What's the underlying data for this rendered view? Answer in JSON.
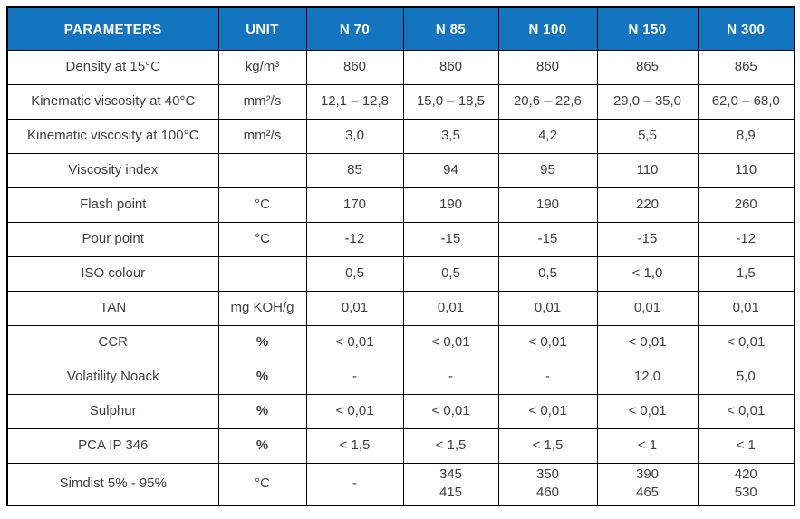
{
  "table": {
    "accent_color": "#1374c0",
    "text_color": "#3f3f3f",
    "columns": [
      "PARAMETERS",
      "UNIT",
      "N 70",
      "N 85",
      "N 100",
      "N 150",
      "N 300"
    ],
    "rows": [
      {
        "parameter": "Density at 15°C",
        "unit": "kg/m³",
        "unit_bold": false,
        "values": [
          "860",
          "860",
          "860",
          "865",
          "865"
        ]
      },
      {
        "parameter": "Kinematic viscosity at 40°C",
        "unit": "mm²/s",
        "unit_bold": false,
        "values": [
          "12,1 – 12,8",
          "15,0 – 18,5",
          "20,6 – 22,6",
          "29,0 – 35,0",
          "62,0 – 68,0"
        ]
      },
      {
        "parameter": "Kinematic viscosity at 100°C",
        "unit": "mm²/s",
        "unit_bold": false,
        "values": [
          "3,0",
          "3,5",
          "4,2",
          "5,5",
          "8,9"
        ]
      },
      {
        "parameter": "Viscosity index",
        "unit": "",
        "unit_bold": false,
        "values": [
          "85",
          "94",
          "95",
          "110",
          "110"
        ]
      },
      {
        "parameter": "Flash point",
        "unit": "°C",
        "unit_bold": false,
        "values": [
          "170",
          "190",
          "190",
          "220",
          "260"
        ]
      },
      {
        "parameter": "Pour point",
        "unit": "°C",
        "unit_bold": false,
        "values": [
          "-12",
          "-15",
          "-15",
          "-15",
          "-12"
        ]
      },
      {
        "parameter": "ISO colour",
        "unit": "",
        "unit_bold": false,
        "values": [
          "0,5",
          "0,5",
          "0,5",
          "< 1,0",
          "1,5"
        ]
      },
      {
        "parameter": "TAN",
        "unit": "mg KOH/g",
        "unit_bold": false,
        "values": [
          "0,01",
          "0,01",
          "0,01",
          "0,01",
          "0,01"
        ]
      },
      {
        "parameter": "CCR",
        "unit": "%",
        "unit_bold": true,
        "values": [
          "< 0,01",
          "< 0,01",
          "< 0,01",
          "< 0,01",
          "< 0,01"
        ]
      },
      {
        "parameter": "Volatility Noack",
        "unit": "%",
        "unit_bold": true,
        "values": [
          "-",
          "-",
          "-",
          "12,0",
          "5,0"
        ]
      },
      {
        "parameter": "Sulphur",
        "unit": "%",
        "unit_bold": true,
        "values": [
          "< 0,01",
          "< 0,01",
          "< 0,01",
          "< 0,01",
          "< 0,01"
        ]
      },
      {
        "parameter": "PCA IP 346",
        "unit": "%",
        "unit_bold": true,
        "values": [
          "< 1,5",
          "< 1,5",
          "< 1,5",
          "< 1",
          "< 1"
        ]
      },
      {
        "parameter": "Simdist 5% - 95%",
        "unit": "°C",
        "unit_bold": false,
        "values": [
          "-",
          "345\n415",
          "350\n460",
          "390\n465",
          "420\n530"
        ]
      }
    ]
  }
}
